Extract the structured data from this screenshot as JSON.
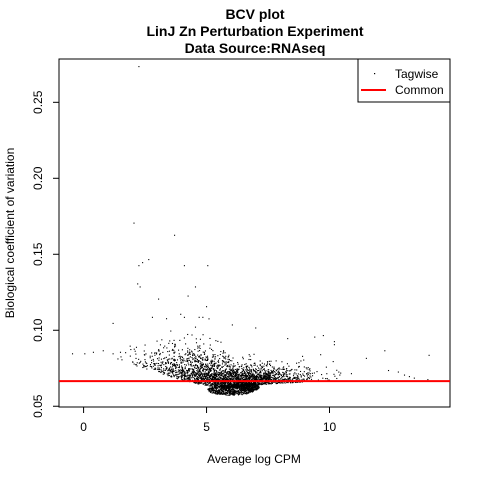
{
  "chart_data": {
    "type": "scatter",
    "title": [
      "BCV plot",
      "LinJ Zn Perturbation Experiment",
      "Data Source:RNAseq"
    ],
    "xlabel": "Average log CPM",
    "ylabel": "Biological coefficient of variation",
    "xlim": [
      -1.0,
      14.9
    ],
    "ylim": [
      0.0495,
      0.2785
    ],
    "x_ticks": [
      0,
      5,
      10
    ],
    "y_ticks": [
      0.05,
      0.1,
      0.15,
      0.2,
      0.25
    ],
    "x_tick_labels": [
      "0",
      "5",
      "10"
    ],
    "y_tick_labels": [
      "0.05",
      "0.10",
      "0.15",
      "0.20",
      "0.25"
    ],
    "grid": false,
    "legend_position": "top-right",
    "series": [
      {
        "name": "Tagwise",
        "kind": "points",
        "color": "#000000",
        "values": [
          [
            2.25,
            0.2735
          ],
          [
            2.05,
            0.1705
          ],
          [
            2.4,
            0.1445
          ],
          [
            2.25,
            0.1425
          ],
          [
            2.2,
            0.1305
          ],
          [
            2.3,
            0.1285
          ],
          [
            2.65,
            0.1465
          ],
          [
            3.7,
            0.1625
          ],
          [
            3.05,
            0.1205
          ],
          [
            2.8,
            0.1085
          ],
          [
            1.2,
            0.1045
          ],
          [
            4.1,
            0.1425
          ],
          [
            5.05,
            0.1425
          ],
          [
            4.25,
            0.1225
          ],
          [
            4.55,
            0.1285
          ],
          [
            5.0,
            0.1155
          ],
          [
            4.7,
            0.1085
          ],
          [
            4.85,
            0.1085
          ],
          [
            5.1,
            0.1075
          ],
          [
            3.95,
            0.1105
          ],
          [
            4.1,
            0.1085
          ],
          [
            6.05,
            0.1035
          ],
          [
            7.0,
            0.1015
          ],
          [
            8.3,
            0.0945
          ],
          [
            9.4,
            0.0955
          ],
          [
            9.75,
            0.0965
          ],
          [
            10.2,
            0.0925
          ],
          [
            10.2,
            0.0905
          ],
          [
            12.25,
            0.0865
          ],
          [
            14.05,
            0.0835
          ],
          [
            -0.45,
            0.0845
          ],
          [
            0.05,
            0.0845
          ],
          [
            0.4,
            0.0855
          ],
          [
            0.8,
            0.0865
          ],
          [
            1.2,
            0.0845
          ],
          [
            1.5,
            0.0855
          ],
          [
            11.5,
            0.0815
          ],
          [
            13.05,
            0.0705
          ],
          [
            13.25,
            0.0695
          ],
          [
            13.45,
            0.0685
          ],
          [
            14.0,
            0.0675
          ],
          [
            12.8,
            0.0725
          ],
          [
            12.4,
            0.0735
          ]
        ]
      },
      {
        "name": "Common",
        "kind": "hline",
        "color": "#ff0000",
        "value": 0.0665
      }
    ],
    "dense_band": {
      "description_free": true,
      "x_range": [
        1.3,
        13.0
      ],
      "x_peak": 5.9,
      "y_floor": 0.0575,
      "y_center_at_low_x": 0.084,
      "y_center_at_peak": 0.0645,
      "y_center_at_high_x": 0.0705,
      "point_count": 2600
    }
  }
}
